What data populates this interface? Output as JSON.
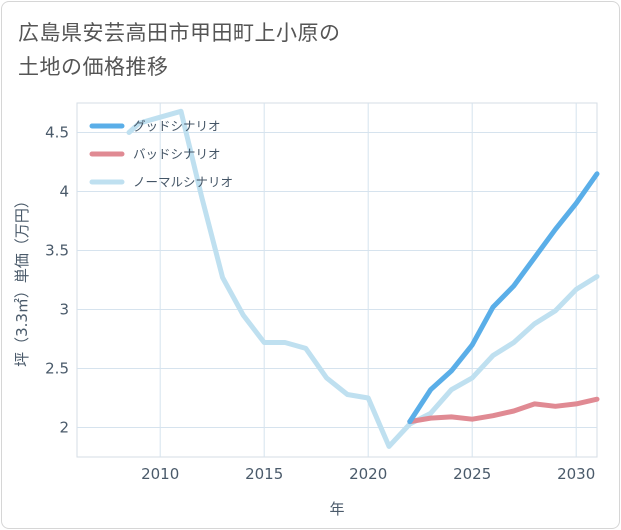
{
  "title_lines": [
    "広島県安芸高田市甲田町上小原の",
    "土地の価格推移"
  ],
  "chart_data": {
    "type": "line",
    "xlabel": "年",
    "ylabel": "坪（3.3㎡）単価（万円）",
    "xlim": [
      2006,
      2031
    ],
    "ylim": [
      1.75,
      4.75
    ],
    "x_ticks": [
      2010,
      2015,
      2020,
      2025,
      2030
    ],
    "y_ticks": [
      2,
      2.5,
      3,
      3.5,
      4,
      4.5
    ],
    "grid": true,
    "legend_position": "top-left",
    "series": [
      {
        "name": "グッドシナリオ",
        "color": "#5aaee8",
        "x": [
          2022,
          2023,
          2024,
          2025,
          2026,
          2027,
          2028,
          2029,
          2030,
          2031
        ],
        "y": [
          2.05,
          2.32,
          2.48,
          2.7,
          3.02,
          3.2,
          3.44,
          3.68,
          3.9,
          4.15
        ]
      },
      {
        "name": "バッドシナリオ",
        "color": "#e08a93",
        "x": [
          2022,
          2023,
          2024,
          2025,
          2026,
          2027,
          2028,
          2029,
          2030,
          2031
        ],
        "y": [
          2.05,
          2.08,
          2.09,
          2.07,
          2.1,
          2.14,
          2.2,
          2.18,
          2.2,
          2.24
        ]
      },
      {
        "name": "ノーマルシナリオ",
        "color": "#bfe0f0",
        "x": [
          2008.5,
          2009,
          2010,
          2011,
          2012,
          2013,
          2014,
          2015,
          2016,
          2017,
          2018,
          2019,
          2020,
          2021,
          2022,
          2023,
          2024,
          2025,
          2026,
          2027,
          2028,
          2029,
          2030,
          2031
        ],
        "y": [
          4.5,
          4.58,
          4.63,
          4.68,
          3.95,
          3.27,
          2.95,
          2.72,
          2.72,
          2.67,
          2.42,
          2.28,
          2.25,
          1.84,
          2.03,
          2.12,
          2.32,
          2.42,
          2.61,
          2.72,
          2.88,
          2.99,
          3.17,
          3.28
        ]
      }
    ]
  }
}
